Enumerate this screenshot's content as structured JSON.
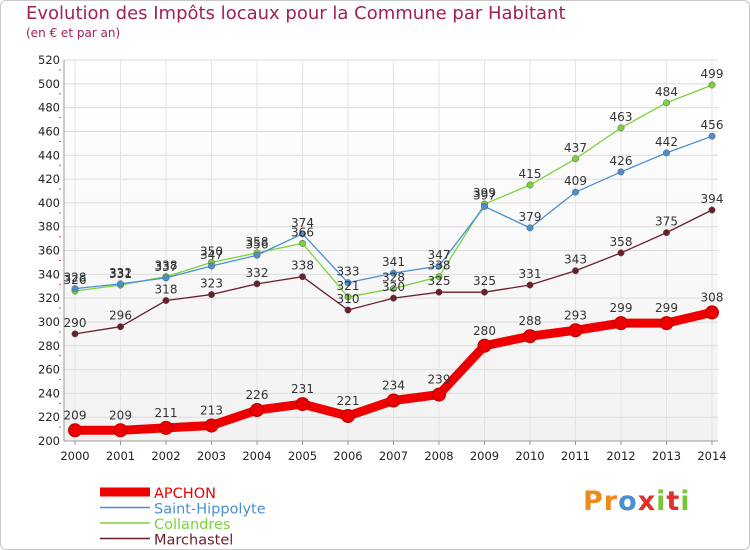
{
  "title": "Evolution des Impôts locaux pour la Commune par Habitant",
  "subtitle": "(en € et par an)",
  "logo": {
    "text": "Proxiti",
    "colors": [
      "#f08a1c",
      "#4a90d0",
      "#e0302a",
      "#7cc43a"
    ]
  },
  "chart_data": {
    "type": "line",
    "title": "Evolution des Impôts locaux pour la Commune par Habitant",
    "subtitle": "(en € et par an)",
    "xlabel": "",
    "ylabel": "",
    "x": [
      "2000",
      "2001",
      "2002",
      "2003",
      "2004",
      "2005",
      "2006",
      "2007",
      "2008",
      "2009",
      "2010",
      "2011",
      "2012",
      "2013",
      "2014"
    ],
    "ylim": [
      200,
      520
    ],
    "yticks": [
      200,
      220,
      240,
      260,
      280,
      300,
      320,
      340,
      360,
      380,
      400,
      420,
      440,
      460,
      480,
      500,
      520
    ],
    "grid": true,
    "legend_position": "bottom-left",
    "series": [
      {
        "name": "APCHON",
        "color": "#ee0000",
        "emphasis": true,
        "values": [
          209,
          209,
          211,
          213,
          226,
          231,
          221,
          234,
          239,
          280,
          288,
          293,
          299,
          299,
          308
        ]
      },
      {
        "name": "Saint-Hippolyte",
        "color": "#4a90d0",
        "emphasis": false,
        "values": [
          328,
          332,
          337,
          347,
          356,
          374,
          333,
          341,
          347,
          397,
          379,
          409,
          426,
          442,
          456
        ]
      },
      {
        "name": "Collandres",
        "color": "#7cd23c",
        "emphasis": false,
        "values": [
          326,
          331,
          338,
          350,
          358,
          366,
          321,
          328,
          338,
          399,
          415,
          437,
          463,
          484,
          499
        ]
      },
      {
        "name": "Marchastel",
        "color": "#6b1f2a",
        "emphasis": false,
        "values": [
          290,
          296,
          318,
          323,
          332,
          338,
          310,
          320,
          325,
          325,
          331,
          343,
          358,
          375,
          394
        ]
      }
    ]
  }
}
